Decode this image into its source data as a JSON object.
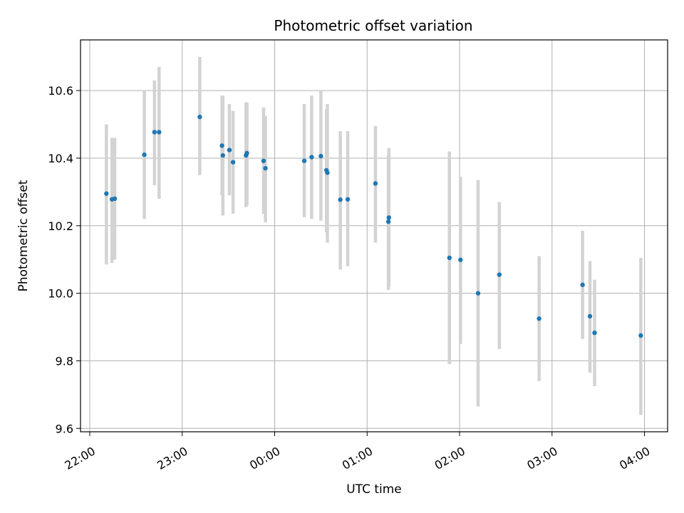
{
  "chart_data": {
    "type": "scatter",
    "title": "Photometric offset variation",
    "xlabel": "UTC time",
    "ylabel": "Photometric offset",
    "x_unit": "hours (UTC clock, 22:00 start)",
    "xlim": [
      21.9,
      28.25
    ],
    "ylim": [
      9.59,
      10.75
    ],
    "grid": true,
    "x_ticks": [
      {
        "value": 22,
        "label": "22:00"
      },
      {
        "value": 23,
        "label": "23:00"
      },
      {
        "value": 24,
        "label": "00:00"
      },
      {
        "value": 25,
        "label": "01:00"
      },
      {
        "value": 26,
        "label": "02:00"
      },
      {
        "value": 27,
        "label": "03:00"
      },
      {
        "value": 28,
        "label": "04:00"
      }
    ],
    "y_ticks": [
      {
        "value": 9.6,
        "label": "9.6"
      },
      {
        "value": 9.8,
        "label": "9.8"
      },
      {
        "value": 10.0,
        "label": "10.0"
      },
      {
        "value": 10.2,
        "label": "10.2"
      },
      {
        "value": 10.4,
        "label": "10.4"
      },
      {
        "value": 10.6,
        "label": "10.6"
      }
    ],
    "colors": {
      "point": "#1f77b4",
      "errorbar": "#d3d3d3",
      "grid": "#b0b0b0"
    },
    "series": [
      {
        "points": [
          {
            "x": 22.18,
            "y": 10.295,
            "lo": 10.085,
            "hi": 10.5
          },
          {
            "x": 22.24,
            "y": 10.278,
            "lo": 10.09,
            "hi": 10.46
          },
          {
            "x": 22.27,
            "y": 10.28,
            "lo": 10.1,
            "hi": 10.46
          },
          {
            "x": 22.59,
            "y": 10.41,
            "lo": 10.22,
            "hi": 10.6
          },
          {
            "x": 22.7,
            "y": 10.477,
            "lo": 10.32,
            "hi": 10.63
          },
          {
            "x": 22.75,
            "y": 10.477,
            "lo": 10.28,
            "hi": 10.67
          },
          {
            "x": 23.19,
            "y": 10.522,
            "lo": 10.35,
            "hi": 10.7
          },
          {
            "x": 23.43,
            "y": 10.437,
            "lo": 10.29,
            "hi": 10.585
          },
          {
            "x": 23.44,
            "y": 10.408,
            "lo": 10.23,
            "hi": 10.585
          },
          {
            "x": 23.51,
            "y": 10.424,
            "lo": 10.29,
            "hi": 10.56
          },
          {
            "x": 23.55,
            "y": 10.388,
            "lo": 10.235,
            "hi": 10.54
          },
          {
            "x": 23.69,
            "y": 10.408,
            "lo": 10.255,
            "hi": 10.565
          },
          {
            "x": 23.7,
            "y": 10.415,
            "lo": 10.26,
            "hi": 10.565
          },
          {
            "x": 23.88,
            "y": 10.392,
            "lo": 10.235,
            "hi": 10.55
          },
          {
            "x": 23.9,
            "y": 10.37,
            "lo": 10.21,
            "hi": 10.525
          },
          {
            "x": 24.32,
            "y": 10.392,
            "lo": 10.225,
            "hi": 10.56
          },
          {
            "x": 24.4,
            "y": 10.403,
            "lo": 10.22,
            "hi": 10.585
          },
          {
            "x": 24.5,
            "y": 10.406,
            "lo": 10.215,
            "hi": 10.6
          },
          {
            "x": 24.56,
            "y": 10.364,
            "lo": 10.18,
            "hi": 10.545
          },
          {
            "x": 24.57,
            "y": 10.357,
            "lo": 10.15,
            "hi": 10.56
          },
          {
            "x": 24.71,
            "y": 10.277,
            "lo": 10.07,
            "hi": 10.48
          },
          {
            "x": 24.79,
            "y": 10.278,
            "lo": 10.08,
            "hi": 10.48
          },
          {
            "x": 25.09,
            "y": 10.325,
            "lo": 10.15,
            "hi": 10.495
          },
          {
            "x": 25.23,
            "y": 10.212,
            "lo": 10.01,
            "hi": 10.41
          },
          {
            "x": 25.235,
            "y": 10.224,
            "lo": 10.02,
            "hi": 10.43
          },
          {
            "x": 25.89,
            "y": 10.105,
            "lo": 9.79,
            "hi": 10.42
          },
          {
            "x": 26.01,
            "y": 10.099,
            "lo": 9.85,
            "hi": 10.345
          },
          {
            "x": 26.2,
            "y": 10.0,
            "lo": 9.665,
            "hi": 10.335
          },
          {
            "x": 26.43,
            "y": 10.055,
            "lo": 9.835,
            "hi": 10.27
          },
          {
            "x": 26.86,
            "y": 9.925,
            "lo": 9.74,
            "hi": 10.11
          },
          {
            "x": 27.33,
            "y": 10.025,
            "lo": 9.865,
            "hi": 10.185
          },
          {
            "x": 27.41,
            "y": 9.932,
            "lo": 9.765,
            "hi": 10.095
          },
          {
            "x": 27.46,
            "y": 9.883,
            "lo": 9.725,
            "hi": 10.04
          },
          {
            "x": 27.96,
            "y": 9.875,
            "lo": 9.64,
            "hi": 10.105
          }
        ]
      }
    ]
  }
}
